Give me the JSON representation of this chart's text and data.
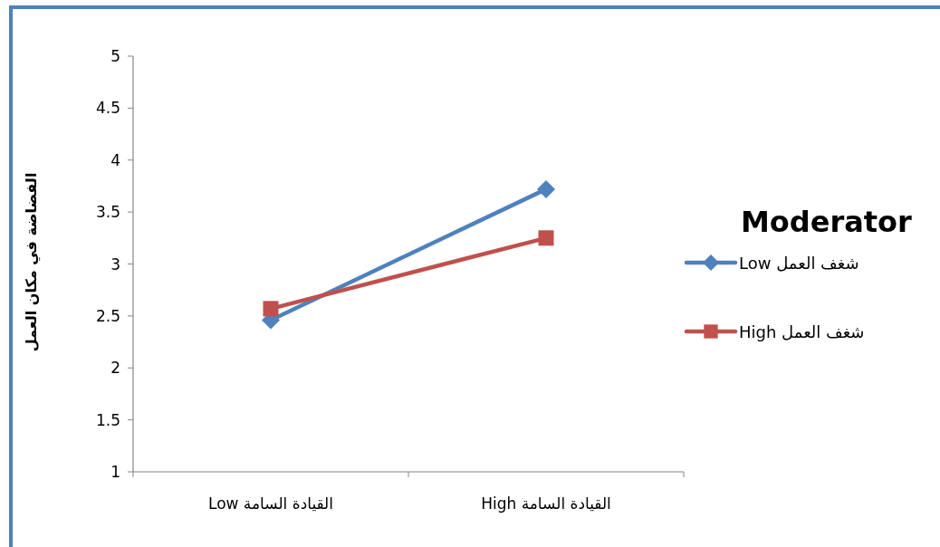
{
  "chart_data": {
    "type": "line",
    "ylabel": "الفضاضة في مكان العمل",
    "legend_title": "Moderator",
    "categories": [
      "القيادة السامة Low",
      "القيادة السامة High"
    ],
    "series": [
      {
        "name": "شغف العمل Low",
        "color": "#4f81bd",
        "marker": "diamond",
        "values": [
          2.46,
          3.72
        ]
      },
      {
        "name": "شغف العمل High",
        "color": "#c0504d",
        "marker": "square",
        "values": [
          2.57,
          3.25
        ]
      }
    ],
    "ylim": [
      1,
      5
    ],
    "yticks": [
      1,
      1.5,
      2,
      2.5,
      3,
      3.5,
      4,
      4.5,
      5
    ],
    "grid": false,
    "legend": "right"
  }
}
